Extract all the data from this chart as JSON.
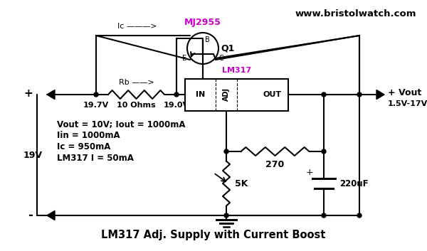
{
  "title": "LM317 Adj. Supply with Current Boost",
  "website": "www.bristolwatch.com",
  "bg_color": "#ffffff",
  "line_color": "#000000",
  "magenta_color": "#cc00cc",
  "v_in": "19V",
  "v_197": "19.7V",
  "v_190": "19.0V",
  "rb_label": "Rb ——>",
  "rb_value": "10 Ohms",
  "transistor_name": "MJ2955",
  "transistor_ref": "Q1",
  "lm_label": "LM317",
  "lm_in": "IN",
  "lm_adj": "ADJ",
  "lm_out": "OUT",
  "ic_arrow": "Ic ———>",
  "r270": "270",
  "r5k": "5K",
  "cap": "220uF",
  "vout_label": "+ Vout",
  "vout_range": "1.5V-17V",
  "info_lines": [
    "Vout = 10V; Iout = 1000mA",
    "Iin = 1000mA",
    "Ic = 950mA",
    "LM317 I = 50mA"
  ]
}
